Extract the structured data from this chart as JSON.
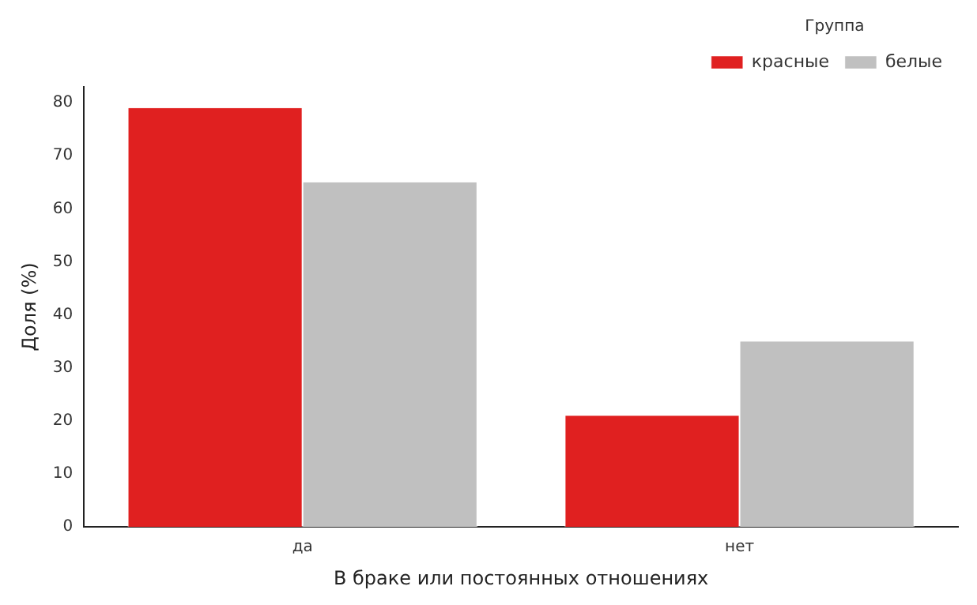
{
  "chart_data": {
    "type": "bar",
    "xlabel": "В браке или постоянных отношениях",
    "ylabel": "Доля (%)",
    "legend_title": "Группа",
    "categories": [
      "да",
      "нет"
    ],
    "series": [
      {
        "name": "красные",
        "color": "#e02020",
        "values": [
          79,
          21
        ]
      },
      {
        "name": "белые",
        "color": "#c0c0c0",
        "values": [
          65,
          35
        ]
      }
    ],
    "ylim": [
      0,
      83
    ],
    "yticks": [
      0,
      10,
      20,
      30,
      40,
      50,
      60,
      70,
      80
    ],
    "grid": false,
    "legend": "top right"
  }
}
